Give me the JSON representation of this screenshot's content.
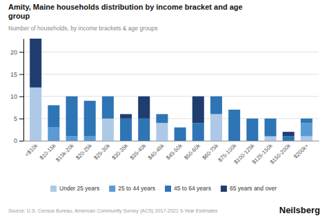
{
  "chart_data": {
    "type": "bar",
    "stacked": true,
    "title": "Amity, Maine households distribution by income bracket and age\ngroup",
    "subtitle": "Number of households, by income brackets & age groups",
    "source": "Source: U.S. Census Bureau, American Community Survey (ACS) 2017-2021 5-Year Estimates",
    "annotations": [
      "Neilsberg"
    ],
    "categories": [
      "<$10k",
      "$10-15k",
      "$15k-20k",
      "$20-25k",
      "$25-30k",
      "$30-35k",
      "$35-40k",
      "$40-45k",
      "$45-50k",
      "$50-60k",
      "$60-75k",
      "$75-100k",
      "$100-125k",
      "$125-150k",
      "$150-200k",
      "$200k+"
    ],
    "series": [
      {
        "name": "Under 25 years",
        "color": "#aec9e8",
        "values": [
          12,
          0,
          0,
          0,
          5,
          0,
          0,
          4,
          0,
          0,
          6,
          0,
          0,
          1,
          0,
          1
        ]
      },
      {
        "name": "25 to 44 years",
        "color": "#5b9bd5",
        "values": [
          0,
          3,
          1,
          1,
          0,
          0,
          0,
          0,
          0,
          0,
          0,
          0,
          0,
          0,
          0,
          3
        ]
      },
      {
        "name": "45 to 64 years",
        "color": "#2e75b6",
        "values": [
          0,
          5,
          9,
          8,
          5,
          5,
          5,
          2,
          3,
          4,
          4,
          7,
          5,
          4,
          1,
          1
        ]
      },
      {
        "name": "65 years and over",
        "color": "#1f3d6e",
        "values": [
          11,
          0,
          0,
          0,
          0,
          1,
          5,
          0,
          0,
          6,
          0,
          0,
          0,
          0,
          1,
          0
        ]
      }
    ],
    "ylim": [
      0,
      23
    ],
    "yticks": [
      0,
      5,
      10,
      15,
      20
    ],
    "grid": true,
    "legend": "bottom"
  }
}
